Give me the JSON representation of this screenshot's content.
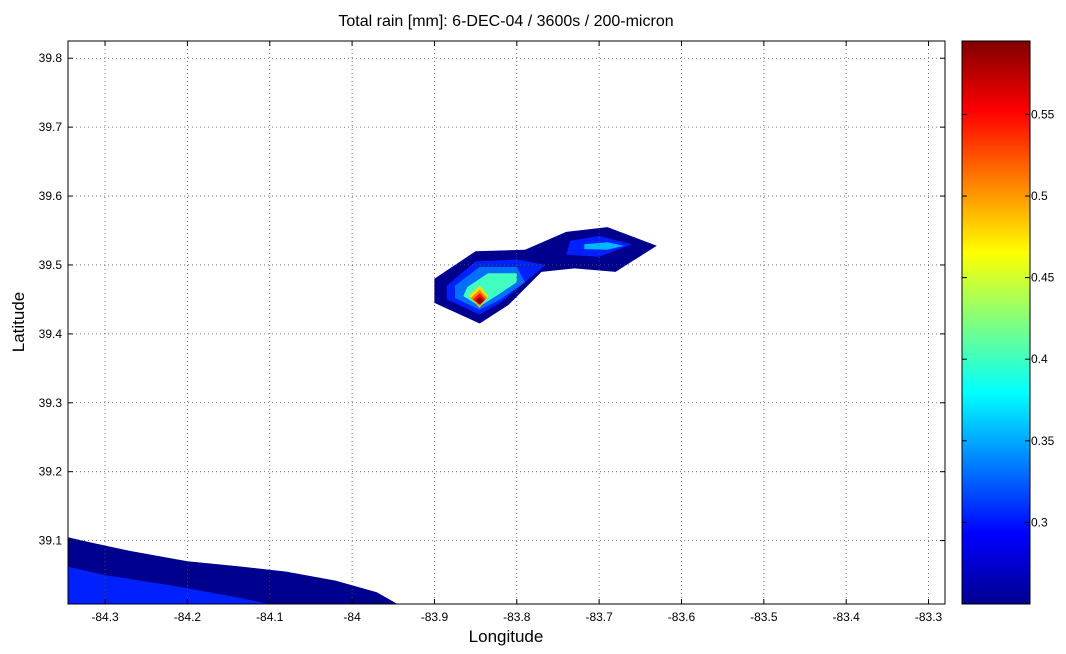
{
  "chart_data": {
    "type": "contour",
    "title": "Total rain [mm]: 6-DEC-04 / 3600s / 200-micron",
    "xlabel": "Longitude",
    "ylabel": "Latitude",
    "xlim": [
      -84.345,
      -83.28
    ],
    "ylim": [
      39.008,
      39.825
    ],
    "xticks": [
      -84.3,
      -84.2,
      -84.1,
      -84,
      -83.9,
      -83.8,
      -83.7,
      -83.6,
      -83.5,
      -83.4,
      -83.3
    ],
    "xtick_labels": [
      "-84.3",
      "-84.2",
      "-84.1",
      "-84",
      "-83.9",
      "-83.8",
      "-83.7",
      "-83.6",
      "-83.5",
      "-83.4",
      "-83.3"
    ],
    "yticks": [
      39.1,
      39.2,
      39.3,
      39.4,
      39.5,
      39.6,
      39.7,
      39.8
    ],
    "ytick_labels": [
      "39.1",
      "39.2",
      "39.3",
      "39.4",
      "39.5",
      "39.6",
      "39.7",
      "39.8"
    ],
    "grid": true,
    "grid_style": "dotted",
    "colormap": "jet",
    "colorbar": {
      "range": [
        0.25,
        0.595
      ],
      "ticks": [
        0.3,
        0.35,
        0.4,
        0.45,
        0.5,
        0.55
      ],
      "tick_labels": [
        "0.3",
        "0.35",
        "0.4",
        "0.45",
        "0.5",
        "0.55"
      ]
    },
    "contour_regions": [
      {
        "level": 0.26,
        "color": "#00008f",
        "points": [
          [
            -84.345,
            39.008
          ],
          [
            -84.345,
            39.105
          ],
          [
            -84.32,
            39.098
          ],
          [
            -84.27,
            39.085
          ],
          [
            -84.2,
            39.07
          ],
          [
            -84.14,
            39.063
          ],
          [
            -84.08,
            39.055
          ],
          [
            -84.02,
            39.042
          ],
          [
            -83.97,
            39.025
          ],
          [
            -83.945,
            39.008
          ]
        ]
      },
      {
        "level": 0.28,
        "color": "#0020ff",
        "points": [
          [
            -84.345,
            39.008
          ],
          [
            -84.345,
            39.062
          ],
          [
            -84.3,
            39.05
          ],
          [
            -84.22,
            39.035
          ],
          [
            -84.15,
            39.02
          ],
          [
            -84.1,
            39.008
          ]
        ]
      },
      {
        "level": 0.26,
        "color": "#00008f",
        "points": [
          [
            -83.9,
            39.48
          ],
          [
            -83.85,
            39.52
          ],
          [
            -83.79,
            39.522
          ],
          [
            -83.74,
            39.548
          ],
          [
            -83.69,
            39.555
          ],
          [
            -83.63,
            39.528
          ],
          [
            -83.68,
            39.49
          ],
          [
            -83.73,
            39.495
          ],
          [
            -83.77,
            39.49
          ],
          [
            -83.81,
            39.442
          ],
          [
            -83.845,
            39.415
          ],
          [
            -83.9,
            39.445
          ]
        ]
      },
      {
        "level": 0.28,
        "color": "#0020ff",
        "points": [
          [
            -83.885,
            39.47
          ],
          [
            -83.85,
            39.505
          ],
          [
            -83.8,
            39.508
          ],
          [
            -83.765,
            39.5
          ],
          [
            -83.79,
            39.475
          ],
          [
            -83.82,
            39.445
          ],
          [
            -83.845,
            39.428
          ],
          [
            -83.885,
            39.45
          ]
        ]
      },
      {
        "level": 0.28,
        "color": "#0020ff",
        "points": [
          [
            -83.735,
            39.535
          ],
          [
            -83.7,
            39.542
          ],
          [
            -83.66,
            39.53
          ],
          [
            -83.7,
            39.512
          ],
          [
            -83.74,
            39.515
          ]
        ]
      },
      {
        "level": 0.34,
        "color": "#00b8ff",
        "points": [
          [
            -83.718,
            39.53
          ],
          [
            -83.69,
            39.533
          ],
          [
            -83.67,
            39.528
          ],
          [
            -83.69,
            39.522
          ],
          [
            -83.718,
            39.523
          ]
        ]
      },
      {
        "level": 0.3,
        "color": "#0070ff",
        "points": [
          [
            -83.875,
            39.47
          ],
          [
            -83.845,
            39.497
          ],
          [
            -83.8,
            39.497
          ],
          [
            -83.79,
            39.475
          ],
          [
            -83.82,
            39.45
          ],
          [
            -83.845,
            39.435
          ],
          [
            -83.875,
            39.452
          ]
        ]
      },
      {
        "level": 0.38,
        "color": "#40ffbf",
        "points": [
          [
            -83.86,
            39.468
          ],
          [
            -83.835,
            39.488
          ],
          [
            -83.8,
            39.488
          ],
          [
            -83.8,
            39.475
          ],
          [
            -83.825,
            39.455
          ],
          [
            -83.845,
            39.44
          ],
          [
            -83.865,
            39.455
          ]
        ]
      },
      {
        "level": 0.46,
        "color": "#ffe000",
        "points": [
          [
            -83.858,
            39.455
          ],
          [
            -83.845,
            39.47
          ],
          [
            -83.835,
            39.455
          ],
          [
            -83.845,
            39.438
          ]
        ]
      },
      {
        "level": 0.5,
        "color": "#ff8000",
        "points": [
          [
            -83.856,
            39.452
          ],
          [
            -83.845,
            39.464
          ],
          [
            -83.836,
            39.452
          ],
          [
            -83.845,
            39.44
          ]
        ]
      },
      {
        "level": 0.55,
        "color": "#ff1000",
        "points": [
          [
            -83.853,
            39.45
          ],
          [
            -83.845,
            39.459
          ],
          [
            -83.838,
            39.45
          ],
          [
            -83.845,
            39.442
          ]
        ]
      },
      {
        "level": 0.59,
        "color": "#8a0000",
        "points": [
          [
            -83.85,
            39.448
          ],
          [
            -83.845,
            39.454
          ],
          [
            -83.84,
            39.448
          ],
          [
            -83.845,
            39.443
          ]
        ]
      }
    ]
  }
}
